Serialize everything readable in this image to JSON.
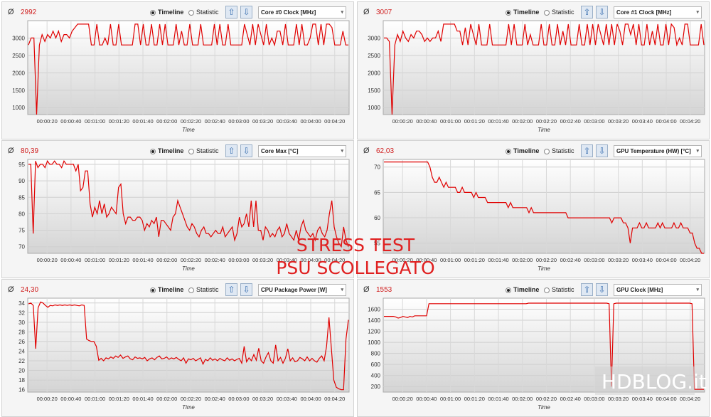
{
  "modes": {
    "timeline": "Timeline",
    "statistic": "Statistic"
  },
  "avg_symbol": "Ø",
  "x_ticks": [
    "00:00:20",
    "00:00:40",
    "00:01:00",
    "00:01:20",
    "00:01:40",
    "00:02:00",
    "00:02:20",
    "00:02:40",
    "00:03:00",
    "00:03:20",
    "00:03:40",
    "00:04:00",
    "00:04:20"
  ],
  "x_label": "Time",
  "line_color": "#e00000",
  "panels": [
    {
      "id": "core0",
      "avg": "2992",
      "sensor": "Core #0 Clock [MHz]",
      "y_ticks": [
        3000,
        2500,
        2000,
        1500,
        1000
      ],
      "ylim": [
        800,
        3500
      ],
      "values": [
        2800,
        3000,
        3000,
        800,
        2800,
        3100,
        2900,
        3100,
        3000,
        3200,
        3000,
        3200,
        2900,
        3100,
        3100,
        3000,
        3200,
        3300,
        3400,
        3400,
        3400,
        3400,
        3400,
        2800,
        2800,
        3400,
        2800,
        2800,
        3000,
        2800,
        3400,
        2800,
        2800,
        3400,
        2800,
        2800,
        2800,
        2800,
        2800,
        3400,
        3400,
        2800,
        3400,
        2800,
        2800,
        3400,
        2800,
        2800,
        3400,
        2800,
        3400,
        2800,
        2800,
        2800,
        3400,
        2800,
        3200,
        2800,
        2800,
        3400,
        2800,
        2800,
        2800,
        3400,
        2800,
        2800,
        2800,
        2800,
        3400,
        2800,
        3400,
        2800,
        2800,
        3400,
        2800,
        2800,
        2800,
        2800,
        2800,
        3400,
        3100,
        2800,
        3400,
        2800,
        3400,
        3100,
        2800,
        3400,
        2800,
        3000,
        2800,
        3200,
        3200,
        2800,
        3400,
        2800,
        2800,
        2800,
        3400,
        2800,
        3400,
        2800,
        2800,
        3000,
        3400,
        3400,
        2800,
        3400,
        2800,
        3400,
        3400,
        3300,
        2800,
        2800,
        2800,
        3200,
        2800,
        2800
      ]
    },
    {
      "id": "core1",
      "avg": "3007",
      "sensor": "Core #1 Clock [MHz]",
      "y_ticks": [
        3000,
        2500,
        2000,
        1500,
        1000
      ],
      "ylim": [
        800,
        3500
      ],
      "values": [
        3000,
        3000,
        2900,
        800,
        2800,
        3100,
        2900,
        3200,
        3000,
        2900,
        3100,
        3000,
        3200,
        3200,
        3100,
        2900,
        3000,
        2900,
        3000,
        3000,
        3200,
        2900,
        3400,
        3400,
        3400,
        3400,
        3400,
        3200,
        3200,
        2800,
        3300,
        2800,
        3400,
        3100,
        2800,
        3400,
        2800,
        2800,
        2800,
        3400,
        2800,
        2800,
        2800,
        2800,
        2800,
        2800,
        3400,
        2800,
        3400,
        2800,
        2800,
        2800,
        3400,
        2800,
        3100,
        2800,
        2800,
        2800,
        3400,
        2800,
        2800,
        3400,
        2800,
        2800,
        3400,
        2800,
        3200,
        2800,
        3400,
        2800,
        2800,
        2800,
        3400,
        2800,
        2800,
        3400,
        2800,
        3400,
        2800,
        3400,
        3100,
        2800,
        3400,
        2800,
        3400,
        2800,
        3400,
        3200,
        2800,
        3400,
        3400,
        3100,
        3400,
        2800,
        3400,
        2800,
        2800,
        3400,
        2800,
        3200,
        2800,
        3400,
        2800,
        2800,
        3400,
        2800,
        3400,
        3300,
        2800,
        3000,
        2800,
        3400,
        3400,
        2800,
        2800,
        2800,
        2800,
        3400,
        2800
      ]
    },
    {
      "id": "coremax",
      "avg": "80,39",
      "sensor": "Core Max [°C]",
      "y_ticks": [
        95,
        90,
        85,
        80,
        75,
        70
      ],
      "ylim": [
        68,
        96.5
      ],
      "values": [
        95,
        95,
        74,
        96,
        94,
        95,
        95,
        94,
        96,
        95,
        95,
        96,
        95,
        95,
        94,
        96,
        95,
        95,
        95,
        95,
        93,
        95,
        87,
        88,
        93,
        93,
        83,
        79,
        82,
        80,
        84,
        80,
        83,
        79,
        80,
        82,
        81,
        80,
        88,
        89,
        80,
        77,
        79,
        79,
        78,
        78,
        79,
        79,
        78,
        75,
        77,
        76,
        78,
        77,
        79,
        73,
        78,
        78,
        77,
        76,
        75,
        79,
        80,
        84,
        82,
        80,
        78,
        76,
        75,
        77,
        76,
        74,
        73,
        75,
        76,
        74,
        74,
        73,
        74,
        75,
        74,
        74,
        76,
        73,
        74,
        75,
        76,
        72,
        74,
        79,
        76,
        77,
        80,
        76,
        84,
        76,
        84,
        75,
        75,
        72,
        76,
        75,
        73,
        74,
        73,
        75,
        76,
        73,
        74,
        77,
        74,
        73,
        72,
        75,
        72,
        76,
        78,
        75,
        74,
        73,
        74,
        72,
        75,
        76,
        74,
        73,
        75,
        80,
        84,
        76,
        73,
        71,
        70,
        76,
        72,
        70
      ]
    },
    {
      "id": "gputemp",
      "avg": "62,03",
      "sensor": "GPU Temperature (HW) [°C]",
      "y_ticks": [
        70,
        65,
        60,
        55
      ],
      "ylim": [
        53,
        71.5
      ],
      "values": [
        71,
        71,
        71,
        71,
        71,
        71,
        71,
        71,
        71,
        71,
        71,
        71,
        71,
        71,
        71,
        71,
        71,
        71,
        71,
        71,
        70,
        68,
        67,
        67,
        68,
        67,
        66,
        67,
        66,
        66,
        66,
        66,
        65,
        65,
        66,
        65,
        65,
        65,
        65,
        64,
        65,
        64,
        64,
        64,
        64,
        63,
        63,
        63,
        63,
        63,
        63,
        63,
        63,
        63,
        62,
        63,
        62,
        62,
        62,
        62,
        62,
        62,
        62,
        61,
        62,
        61,
        61,
        61,
        61,
        61,
        61,
        61,
        61,
        61,
        61,
        61,
        61,
        61,
        61,
        61,
        60,
        60,
        60,
        60,
        60,
        60,
        60,
        60,
        60,
        60,
        60,
        60,
        60,
        60,
        60,
        60,
        60,
        60,
        60,
        59,
        60,
        60,
        60,
        60,
        59,
        59,
        58,
        55,
        58,
        58,
        58,
        59,
        58,
        58,
        59,
        58,
        58,
        58,
        58,
        59,
        58,
        59,
        58,
        58,
        58,
        58,
        59,
        58,
        58,
        59,
        58,
        58,
        58,
        57,
        57,
        55,
        54,
        54,
        53,
        53
      ]
    },
    {
      "id": "cpupower",
      "avg": "24,30",
      "sensor": "CPU Package Power [W]",
      "y_ticks": [
        34,
        32,
        30,
        28,
        26,
        24,
        22,
        20,
        18,
        16
      ],
      "ylim": [
        15.5,
        35
      ],
      "values": [
        33.8,
        34,
        33.5,
        24.5,
        33,
        34.2,
        34,
        33.5,
        33.1,
        33.5,
        33.4,
        33.6,
        33.5,
        33.6,
        33.5,
        33.6,
        33.5,
        33.6,
        33.5,
        33.6,
        33.5,
        33.4,
        33.6,
        33.5,
        26.5,
        26.2,
        26,
        26,
        25,
        22.1,
        22.5,
        22,
        22.6,
        22.4,
        22.8,
        22.5,
        23,
        22.7,
        23.2,
        22.5,
        22.8,
        23,
        22.4,
        22.2,
        22.8,
        22.5,
        22.6,
        22.4,
        22.7,
        22,
        22.4,
        22.6,
        22.2,
        22.7,
        23,
        22.4,
        22.5,
        22.8,
        22.3,
        22.6,
        22.4,
        22.7,
        22.3,
        22,
        22.6,
        21.5,
        22.4,
        22.2,
        22.5,
        22,
        22.3,
        22.6,
        21.3,
        22.3,
        22,
        22.6,
        22.1,
        22.4,
        22,
        22.5,
        22.2,
        22,
        22.6,
        22.1,
        22.4,
        22,
        22.3,
        22.5,
        21.5,
        25,
        21.8,
        22.6,
        22,
        23.3,
        22.1,
        24.6,
        22,
        21.5,
        22.8,
        23.7,
        22,
        21.5,
        25.3,
        22,
        22.7,
        21.5,
        22.5,
        24.5,
        22,
        22.6,
        21.8,
        22,
        22.7,
        22.4,
        22,
        22.8,
        22,
        22.5,
        22,
        21.7,
        22.5,
        23,
        22,
        25,
        31,
        24.5,
        18,
        16.5,
        16.2,
        16,
        16,
        26.5,
        30.5
      ]
    },
    {
      "id": "gpuclock",
      "avg": "1553",
      "sensor": "GPU Clock [MHz]",
      "y_ticks": [
        1600,
        1400,
        1200,
        1000,
        800,
        600,
        400,
        200
      ],
      "ylim": [
        100,
        1800
      ],
      "values": [
        1470,
        1470,
        1470,
        1470,
        1470,
        1460,
        1440,
        1450,
        1470,
        1460,
        1450,
        1470,
        1460,
        1480,
        1480,
        1480,
        1480,
        1480,
        1480,
        1700,
        1700,
        1700,
        1700,
        1700,
        1700,
        1700,
        1700,
        1700,
        1700,
        1700,
        1700,
        1700,
        1700,
        1700,
        1700,
        1700,
        1700,
        1700,
        1700,
        1700,
        1700,
        1700,
        1700,
        1700,
        1700,
        1700,
        1700,
        1700,
        1700,
        1700,
        1700,
        1700,
        1700,
        1700,
        1700,
        1700,
        1700,
        1700,
        1700,
        1700,
        1700,
        1710,
        1710,
        1710,
        1710,
        1710,
        1710,
        1710,
        1710,
        1710,
        1710,
        1710,
        1710,
        1710,
        1710,
        1710,
        1710,
        1710,
        1710,
        1710,
        1710,
        1710,
        1710,
        1710,
        1710,
        1710,
        1710,
        1710,
        1710,
        1710,
        1710,
        1710,
        1710,
        1710,
        1710,
        1700,
        200,
        1700,
        1710,
        1710,
        1710,
        1710,
        1710,
        1710,
        1710,
        1710,
        1710,
        1710,
        1710,
        1710,
        1710,
        1710,
        1710,
        1710,
        1710,
        1710,
        1710,
        1710,
        1710,
        1710,
        1710,
        1710,
        1710,
        1710,
        1710,
        1710,
        1710,
        1710,
        1710,
        1710,
        1700,
        150,
        150,
        150,
        150,
        150
      ]
    }
  ],
  "overlay": {
    "line1": "STRESS TEST",
    "line2": "PSU SCOLLEGATO"
  },
  "watermark": "HDBLOG.it"
}
